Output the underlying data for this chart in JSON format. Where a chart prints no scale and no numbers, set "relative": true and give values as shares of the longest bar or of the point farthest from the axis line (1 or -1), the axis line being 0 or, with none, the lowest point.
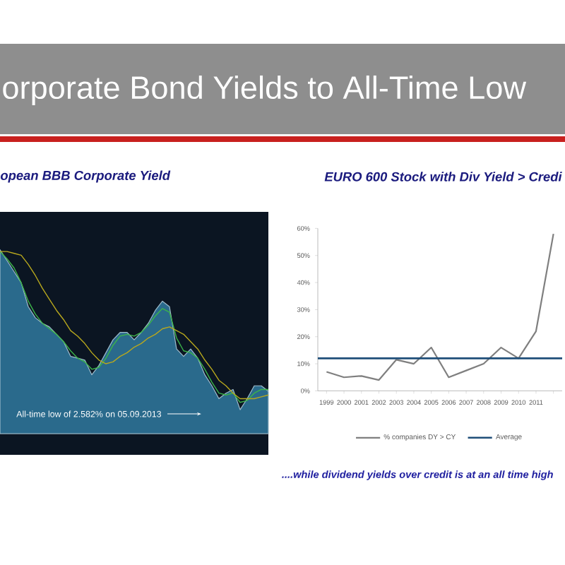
{
  "chart_data": [
    {
      "type": "other",
      "title": "orporate Bond Yields to All-Time Low"
    },
    {
      "type": "area",
      "title": "opean BBB Corporate Yield",
      "relative": true,
      "categories": [
        null,
        null,
        null,
        null,
        null,
        null,
        null,
        null,
        null,
        null,
        null,
        null,
        null,
        null,
        null,
        null,
        null,
        null,
        null,
        null,
        null,
        null,
        null,
        null,
        null,
        null,
        null,
        null,
        null,
        null,
        null,
        null,
        null,
        null,
        null,
        null,
        null,
        null,
        null
      ],
      "series": [
        {
          "color": "#2a6a8c",
          "values": [
            1.0,
            0.94,
            0.88,
            0.82,
            0.69,
            0.63,
            0.6,
            0.58,
            0.54,
            0.5,
            0.42,
            0.41,
            0.4,
            0.32,
            0.37,
            0.44,
            0.51,
            0.55,
            0.55,
            0.51,
            0.55,
            0.6,
            0.67,
            0.72,
            0.69,
            0.46,
            0.42,
            0.46,
            0.41,
            0.32,
            0.26,
            0.19,
            0.22,
            0.24,
            0.13,
            0.19,
            0.26,
            0.26,
            0.23
          ]
        },
        {
          "type": "line",
          "color": "#3cb44a",
          "values": [
            0.99,
            0.95,
            0.9,
            0.82,
            0.72,
            0.65,
            0.6,
            0.57,
            0.54,
            0.5,
            0.45,
            0.41,
            0.39,
            0.35,
            0.36,
            0.41,
            0.48,
            0.53,
            0.54,
            0.53,
            0.55,
            0.59,
            0.64,
            0.68,
            0.66,
            0.52,
            0.45,
            0.44,
            0.41,
            0.35,
            0.28,
            0.22,
            0.21,
            0.22,
            0.17,
            0.18,
            0.22,
            0.24,
            0.24
          ]
        },
        {
          "type": "line",
          "color": "#b8a81e",
          "values": [
            0.99,
            0.99,
            0.98,
            0.97,
            0.92,
            0.86,
            0.79,
            0.73,
            0.67,
            0.62,
            0.56,
            0.53,
            0.49,
            0.44,
            0.4,
            0.38,
            0.39,
            0.42,
            0.44,
            0.47,
            0.49,
            0.52,
            0.54,
            0.57,
            0.58,
            0.56,
            0.54,
            0.5,
            0.46,
            0.4,
            0.35,
            0.29,
            0.26,
            0.22,
            0.19,
            0.19,
            0.19,
            0.2,
            0.21
          ]
        }
      ],
      "annotations": [
        "All-time low of 2.582% on 05.09.2013"
      ]
    },
    {
      "type": "line",
      "title": "EURO 600 Stock with Div Yield > Credi",
      "categories": [
        "1999",
        "2000",
        "2001",
        "2002",
        "2003",
        "2004",
        "2005",
        "2006",
        "2007",
        "2008",
        "2009",
        "2010",
        "2011",
        null
      ],
      "series": [
        {
          "name": "% companies DY > CY",
          "color": "#7f7f7f",
          "values": [
            7,
            5,
            5.5,
            4,
            11.5,
            10,
            16,
            5,
            7.5,
            10,
            16,
            12,
            22,
            58
          ]
        }
      ],
      "ref_lines": [
        {
          "axis": "y",
          "value": 12,
          "label": "Average",
          "color": "#1f4e79"
        }
      ],
      "ylim": [
        0,
        60
      ],
      "yticks": [
        {
          "value": 0,
          "label": "0%"
        },
        {
          "value": 10,
          "label": "10%"
        },
        {
          "value": 20,
          "label": "20%"
        },
        {
          "value": 30,
          "label": "30%"
        },
        {
          "value": 40,
          "label": "40%"
        },
        {
          "value": 50,
          "label": "50%"
        },
        {
          "value": 60,
          "label": "60%"
        }
      ],
      "legend": "bottom",
      "annotations": [
        "....while dividend yields over credit is at an all time high"
      ]
    }
  ]
}
